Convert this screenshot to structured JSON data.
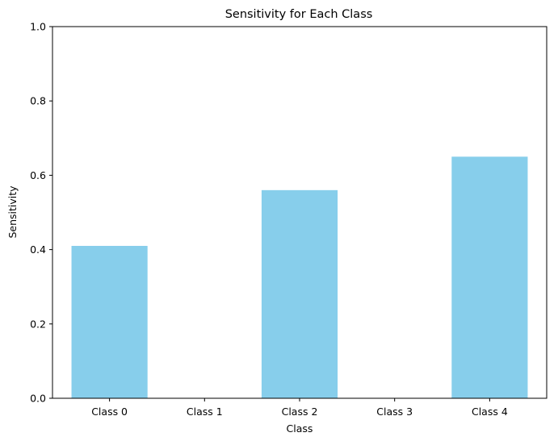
{
  "chart_data": {
    "type": "bar",
    "title": "Sensitivity for Each Class",
    "xlabel": "Class",
    "ylabel": "Sensitivity",
    "categories": [
      "Class 0",
      "Class 1",
      "Class 2",
      "Class 3",
      "Class 4"
    ],
    "values": [
      0.41,
      0.0,
      0.56,
      0.0,
      0.65
    ],
    "ylim": [
      0,
      1
    ],
    "yticks": [
      "0.0",
      "0.2",
      "0.4",
      "0.6",
      "0.8",
      "1.0"
    ],
    "grid": false,
    "bar_color": "#87ceeb"
  }
}
